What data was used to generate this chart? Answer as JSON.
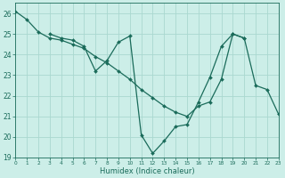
{
  "xlabel": "Humidex (Indice chaleur)",
  "bg_color": "#cceee8",
  "grid_color": "#aad8d0",
  "line_color": "#1a6b5a",
  "line1_x": [
    0,
    1,
    2,
    3,
    4,
    5,
    6,
    7,
    8,
    9,
    10,
    11,
    12,
    13,
    14,
    15,
    16,
    17,
    18,
    19,
    20,
    21,
    22,
    23
  ],
  "line1_y": [
    26.1,
    25.7,
    25.1,
    24.8,
    24.7,
    24.5,
    24.3,
    23.9,
    23.6,
    23.2,
    22.8,
    22.3,
    21.9,
    21.5,
    21.2,
    21.0,
    21.5,
    21.7,
    22.8,
    25.0,
    24.8,
    22.5,
    22.3,
    21.1
  ],
  "line2_x": [
    3,
    4,
    5,
    6,
    7,
    8,
    9,
    10,
    11,
    12,
    13,
    14,
    15,
    16,
    17,
    18,
    19,
    20
  ],
  "line2_y": [
    25.0,
    24.8,
    24.7,
    24.4,
    23.2,
    23.7,
    24.6,
    24.9,
    20.1,
    19.2,
    19.8,
    20.5,
    20.6,
    21.7,
    22.9,
    24.4,
    25.0,
    24.8
  ],
  "xlim": [
    0,
    23
  ],
  "ylim": [
    19,
    26.5
  ],
  "yticks": [
    19,
    20,
    21,
    22,
    23,
    24,
    25,
    26
  ],
  "xticks": [
    0,
    1,
    2,
    3,
    4,
    5,
    6,
    7,
    8,
    9,
    10,
    11,
    12,
    13,
    14,
    15,
    16,
    17,
    18,
    19,
    20,
    21,
    22,
    23
  ],
  "xtick_labels": [
    "0",
    "1",
    "2",
    "3",
    "4",
    "5",
    "6",
    "7",
    "8",
    "9",
    "10",
    "11",
    "12",
    "13",
    "14",
    "15",
    "16",
    "17",
    "18",
    "19",
    "20",
    "21",
    "22",
    "23"
  ]
}
